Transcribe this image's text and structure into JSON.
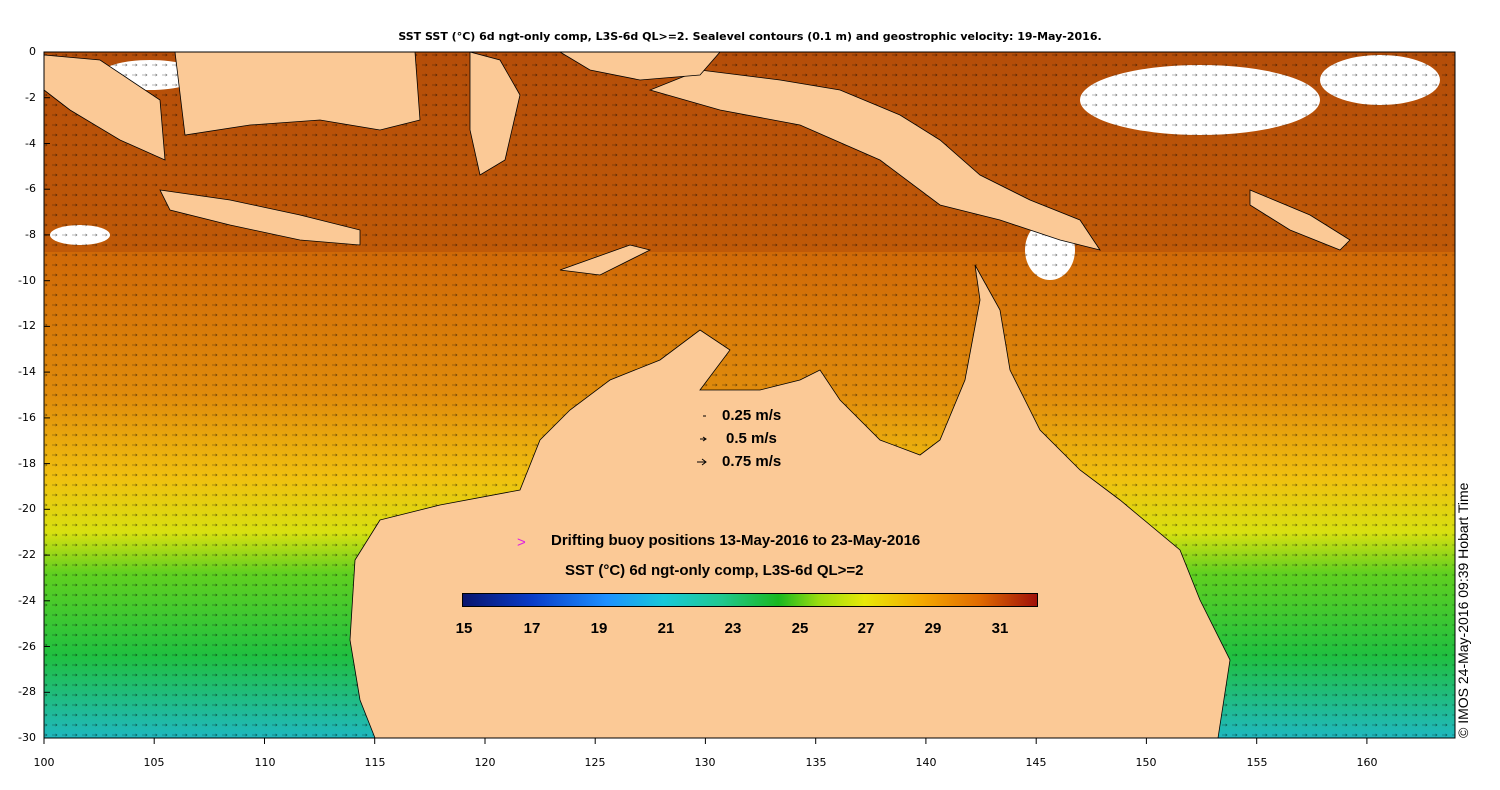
{
  "title": "SST SST (°C) 6d ngt-only comp, L3S-6d QL>=2. Sealevel contours (0.1 m) and geostrophic velocity: 19-May-2016.",
  "y_axis_ticks": [
    "0",
    "-2",
    "-4",
    "-6",
    "-8",
    "-10",
    "-12",
    "-14",
    "-16",
    "-18",
    "-20",
    "-22",
    "-24",
    "-26",
    "-28",
    "-30"
  ],
  "x_axis_ticks": [
    "100",
    "105",
    "110",
    "115",
    "120",
    "125",
    "130",
    "135",
    "140",
    "145",
    "150",
    "155",
    "160"
  ],
  "velocity_legend": [
    "0.25 m/s",
    "0.5 m/s",
    "0.75 m/s"
  ],
  "buoy_legend": "Drifting buoy positions 13-May-2016 to 23-May-2016",
  "colorbar": {
    "title": "SST (°C) 6d ngt-only comp, L3S-6d QL>=2",
    "ticks": [
      "15",
      "17",
      "19",
      "21",
      "23",
      "25",
      "27",
      "29",
      "31"
    ],
    "range": [
      15,
      32
    ]
  },
  "credit": "© IMOS 24-May-2016 09:39 Hobart Time",
  "colors": {
    "land": "#fbc996",
    "sst_warm": "#c8580a",
    "sst_mid": "#e89010",
    "sst_cool": "#20c020",
    "buoy_marker": "#e020e0"
  },
  "map_extent": {
    "lon": [
      100,
      164
    ],
    "lat": [
      -30,
      0
    ]
  }
}
